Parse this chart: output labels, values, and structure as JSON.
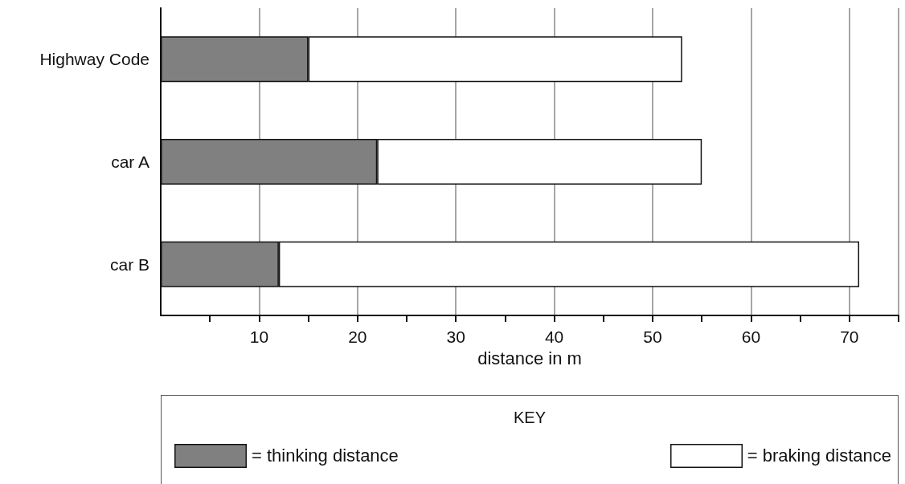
{
  "chart_data": {
    "type": "bar",
    "orientation": "horizontal",
    "stacked": true,
    "categories": [
      "Highway Code",
      "car A",
      "car B"
    ],
    "series": [
      {
        "name": "= thinking distance",
        "color": "#808080",
        "values": [
          15,
          22,
          12
        ]
      },
      {
        "name": "= braking distance",
        "color": "#ffffff",
        "values": [
          38,
          33,
          59
        ]
      }
    ],
    "xlabel": "distance in m",
    "legend_title": "KEY",
    "legend": "bottom",
    "grid": "x",
    "xlim": [
      0,
      75
    ],
    "xticks": [
      {
        "value": 5,
        "label": null
      },
      10,
      {
        "value": 15,
        "label": null
      },
      20,
      {
        "value": 25,
        "label": null
      },
      30,
      {
        "value": 35,
        "label": null
      },
      40,
      {
        "value": 45,
        "label": null
      },
      50,
      {
        "value": 55,
        "label": null
      },
      60,
      {
        "value": 65,
        "label": null
      },
      70,
      {
        "value": 75,
        "label": null
      }
    ]
  }
}
